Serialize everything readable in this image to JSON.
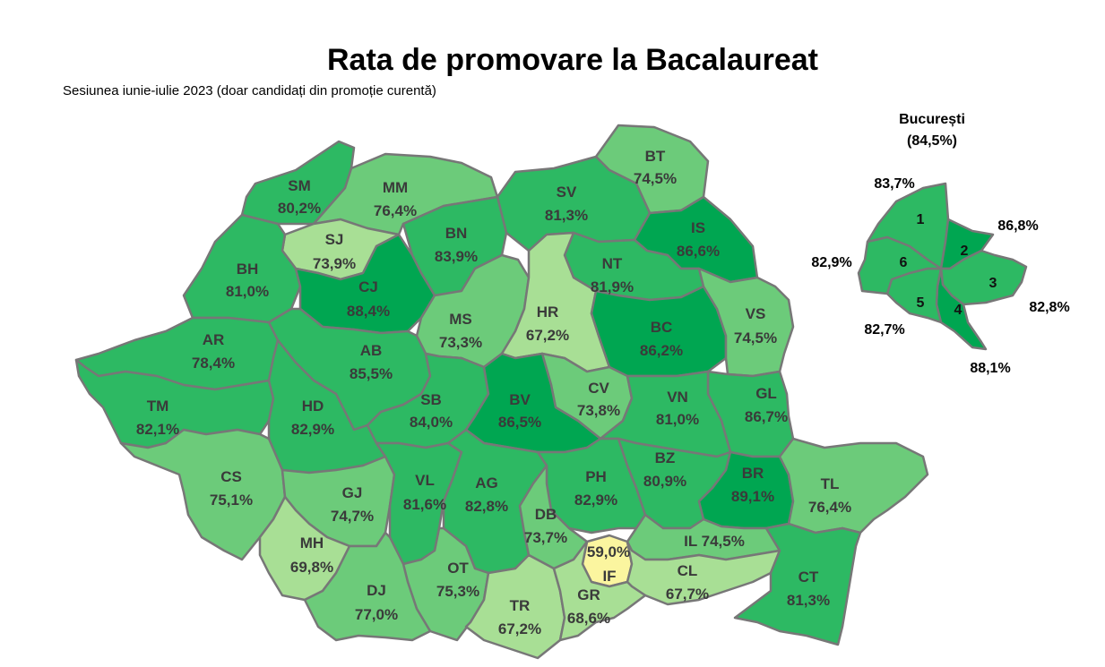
{
  "title": "Rata de promovare la Bacalaureat",
  "subtitle": "Sesiunea iunie-iulie 2023 (doar candidați din promoție curentă)",
  "bucuresti": {
    "name": "București",
    "total": "(84,5%)"
  },
  "colors": {
    "very_high": "#00A651",
    "high": "#2DB963",
    "medium": "#6CCB7A",
    "low": "#A8DF95",
    "very_low": "#FBF59F"
  },
  "counties": [
    {
      "code": "SM",
      "value": "80,2%"
    },
    {
      "code": "MM",
      "value": "76,4%"
    },
    {
      "code": "BT",
      "value": "74,5%"
    },
    {
      "code": "SV",
      "value": "81,3%"
    },
    {
      "code": "SJ",
      "value": "73,9%"
    },
    {
      "code": "BN",
      "value": "83,9%"
    },
    {
      "code": "IS",
      "value": "86,6%"
    },
    {
      "code": "BH",
      "value": "81,0%"
    },
    {
      "code": "CJ",
      "value": "88,4%"
    },
    {
      "code": "NT",
      "value": "81,9%"
    },
    {
      "code": "MS",
      "value": "73,3%"
    },
    {
      "code": "HR",
      "value": "67,2%"
    },
    {
      "code": "BC",
      "value": "86,2%"
    },
    {
      "code": "VS",
      "value": "74,5%"
    },
    {
      "code": "AR",
      "value": "78,4%"
    },
    {
      "code": "AB",
      "value": "85,5%"
    },
    {
      "code": "CV",
      "value": "73,8%"
    },
    {
      "code": "GL",
      "value": "86,7%"
    },
    {
      "code": "TM",
      "value": "82,1%"
    },
    {
      "code": "HD",
      "value": "82,9%"
    },
    {
      "code": "SB",
      "value": "84,0%"
    },
    {
      "code": "BV",
      "value": "86,5%"
    },
    {
      "code": "VN",
      "value": "81,0%"
    },
    {
      "code": "CS",
      "value": "75,1%"
    },
    {
      "code": "GJ",
      "value": "74,7%"
    },
    {
      "code": "VL",
      "value": "81,6%"
    },
    {
      "code": "AG",
      "value": "82,8%"
    },
    {
      "code": "PH",
      "value": "82,9%"
    },
    {
      "code": "BZ",
      "value": "80,9%"
    },
    {
      "code": "BR",
      "value": "89,1%"
    },
    {
      "code": "TL",
      "value": "76,4%"
    },
    {
      "code": "DB",
      "value": "73,7%"
    },
    {
      "code": "MH",
      "value": "69,8%"
    },
    {
      "code": "IF",
      "value": "59,0%"
    },
    {
      "code": "IL",
      "value": "74,5%"
    },
    {
      "code": "OT",
      "value": "75,3%"
    },
    {
      "code": "CL",
      "value": "67,7%"
    },
    {
      "code": "DJ",
      "value": "77,0%"
    },
    {
      "code": "TR",
      "value": "67,2%"
    },
    {
      "code": "GR",
      "value": "68,6%"
    },
    {
      "code": "CT",
      "value": "81,3%"
    }
  ],
  "sectors": [
    {
      "num": "1",
      "value": "83,7%"
    },
    {
      "num": "2",
      "value": "86,8%"
    },
    {
      "num": "3",
      "value": "82,8%"
    },
    {
      "num": "4",
      "value": "88,1%"
    },
    {
      "num": "5",
      "value": "82,7%"
    },
    {
      "num": "6",
      "value": "82,9%"
    }
  ]
}
